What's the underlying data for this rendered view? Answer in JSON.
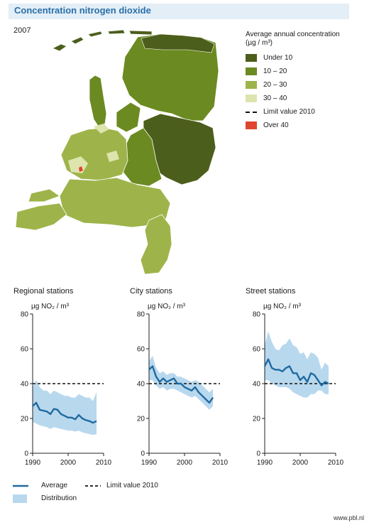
{
  "title": "Concentration nitrogen dioxide",
  "map": {
    "year": "2007",
    "legend_title_line1": "Average annual concentration",
    "legend_title_line2": "(µg / m³)",
    "legend": [
      {
        "label": "Under 10",
        "color": "#4c5e1b",
        "kind": "swatch"
      },
      {
        "label": "10 – 20",
        "color": "#6b8a21",
        "kind": "swatch"
      },
      {
        "label": "20 – 30",
        "color": "#9eb44a",
        "kind": "swatch"
      },
      {
        "label": "30 – 40",
        "color": "#dde4ae",
        "kind": "swatch"
      },
      {
        "label": "Limit value 2010",
        "color": "#111111",
        "kind": "dash"
      },
      {
        "label": "Over 40",
        "color": "#e0462d",
        "kind": "swatch"
      }
    ]
  },
  "chart_data": [
    {
      "type": "line",
      "title": "Regional stations",
      "ylabel": "µg NO₂ / m³",
      "xlim": [
        1990,
        2010
      ],
      "ylim": [
        0,
        80
      ],
      "xticks": [
        1990,
        2000,
        2010
      ],
      "yticks": [
        0,
        20,
        40,
        60,
        80
      ],
      "limit_value": 40,
      "x": [
        1990,
        1991,
        1992,
        1993,
        1994,
        1995,
        1996,
        1997,
        1998,
        1999,
        2000,
        2001,
        2002,
        2003,
        2004,
        2005,
        2006,
        2007,
        2008
      ],
      "average": [
        27,
        29,
        25,
        24.5,
        24,
        22.5,
        25.5,
        25,
        22.5,
        21.5,
        20.5,
        20.5,
        19.5,
        22,
        20,
        19,
        18.5,
        17.5,
        18.5
      ],
      "dist_low": [
        18,
        17,
        16,
        15.5,
        15,
        14,
        15,
        14.5,
        14,
        13.5,
        13,
        13,
        12.5,
        13,
        12,
        11.5,
        11,
        10.5,
        11
      ],
      "dist_high": [
        38,
        42,
        38,
        36,
        36,
        34,
        36,
        35,
        34,
        33,
        33,
        32,
        32,
        34,
        33,
        32,
        32,
        30,
        35
      ]
    },
    {
      "type": "line",
      "title": "City stations",
      "ylabel": "µg NO₂ / m³",
      "xlim": [
        1990,
        2010
      ],
      "ylim": [
        0,
        80
      ],
      "xticks": [
        1990,
        2000,
        2010
      ],
      "yticks": [
        0,
        20,
        40,
        60,
        80
      ],
      "limit_value": 40,
      "x": [
        1990,
        1991,
        1992,
        1993,
        1994,
        1995,
        1996,
        1997,
        1998,
        1999,
        2000,
        2001,
        2002,
        2003,
        2004,
        2005,
        2006,
        2007,
        2008
      ],
      "average": [
        48,
        50,
        44,
        41,
        43,
        41,
        42,
        43,
        40,
        40,
        38,
        37,
        36,
        38,
        35,
        33,
        31,
        29,
        32
      ],
      "dist_low": [
        42,
        42,
        39,
        37,
        38,
        36,
        37,
        37,
        36,
        35,
        34,
        33,
        32,
        33,
        31,
        29,
        27,
        25,
        27
      ],
      "dist_high": [
        53,
        56,
        49,
        46,
        47,
        45,
        46,
        46,
        44,
        44,
        43,
        42,
        41,
        42,
        41,
        39,
        37,
        35,
        37
      ]
    },
    {
      "type": "line",
      "title": "Street stations",
      "ylabel": "µg NO₂ / m³",
      "xlim": [
        1990,
        2010
      ],
      "ylim": [
        0,
        80
      ],
      "xticks": [
        1990,
        2000,
        2010
      ],
      "yticks": [
        0,
        20,
        40,
        60,
        80
      ],
      "limit_value": 40,
      "x": [
        1990,
        1991,
        1992,
        1993,
        1994,
        1995,
        1996,
        1997,
        1998,
        1999,
        2000,
        2001,
        2002,
        2003,
        2004,
        2005,
        2006,
        2007,
        2008
      ],
      "average": [
        50,
        54,
        49,
        48,
        48,
        47,
        49,
        50,
        46,
        46,
        42,
        44,
        41,
        46,
        45,
        42,
        39,
        41,
        40
      ],
      "dist_low": [
        42,
        42,
        40,
        39,
        38,
        38,
        38,
        37,
        35,
        34,
        33,
        32,
        32,
        34,
        34,
        36,
        36,
        34,
        34
      ],
      "dist_high": [
        62,
        70,
        64,
        60,
        59,
        62,
        63,
        66,
        62,
        61,
        57,
        58,
        54,
        58,
        57,
        55,
        48,
        52,
        50
      ]
    }
  ],
  "bottom_legend": {
    "average": "Average",
    "distribution": "Distribution",
    "limit": "Limit value 2010"
  },
  "colors": {
    "average": "#1f6aa0",
    "distribution": "#b8d8ee",
    "title": "#2a6fa8",
    "title_bar": "#e3eef6"
  },
  "credit": "www.pbl.nl"
}
